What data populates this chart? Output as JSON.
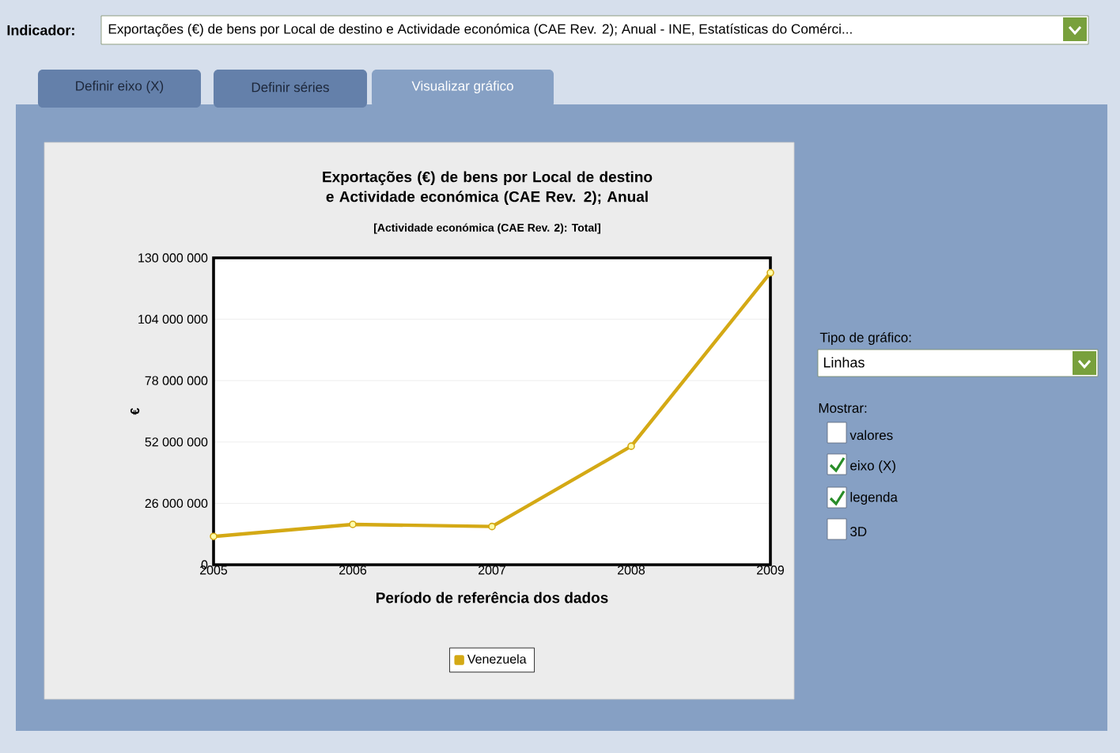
{
  "chart_data": {
    "type": "line",
    "title": "Exportações (€) de bens por Local de destino e Actividade económica (CAE Rev. 2); Anual",
    "subtitle": "[Actividade económica (CAE Rev. 2): Total]",
    "xlabel": "Período de referência dos dados",
    "ylabel": "€",
    "x": [
      2005,
      2006,
      2007,
      2008,
      2009
    ],
    "series": [
      {
        "name": "Venezuela",
        "color": "#d4a915",
        "values": [
          12000000,
          17100000,
          16200000,
          50200000,
          123700000
        ]
      }
    ],
    "xlim": [
      2005,
      2009
    ],
    "xticks": [
      2005,
      2006,
      2007,
      2008,
      2009
    ],
    "ylim": [
      0,
      130000000
    ],
    "yticks": [
      {
        "value": 0,
        "label": "0"
      },
      {
        "value": 26000000,
        "label": "26 000 000"
      },
      {
        "value": 52000000,
        "label": "52 000 000"
      },
      {
        "value": 78000000,
        "label": "78 000 000"
      },
      {
        "value": 104000000,
        "label": "104 000 000"
      },
      {
        "value": 130000000,
        "label": "130 000 000"
      }
    ],
    "grid": "y",
    "legend": "bottom",
    "marker": "circle",
    "line_style": "solid",
    "annotations": [
      "Indicador:",
      "Exportações (€) de bens por Local de destino e Actividade económica (CAE Rev. 2); Anual - INE, Estatísticas do Comérci...",
      "Definir eixo (X)",
      "Definir séries",
      "Visualizar gráfico",
      "Tipo de gráfico:",
      "Linhas",
      "Mostrar:",
      "valores",
      "eixo (X)",
      "legenda",
      "3D"
    ]
  }
}
